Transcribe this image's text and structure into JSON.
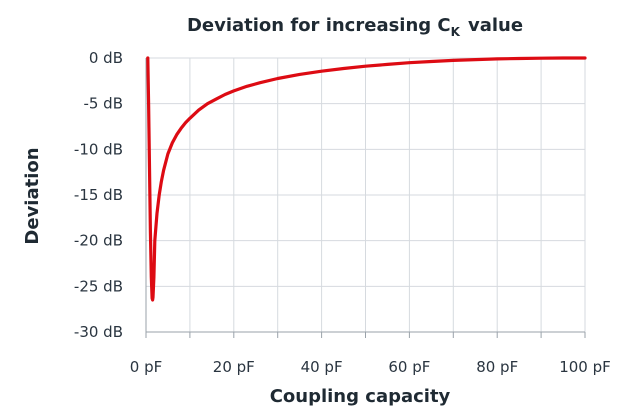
{
  "chart_data": {
    "type": "line",
    "title": {
      "main": "Deviation for increasing C",
      "subscript": "K",
      "suffix": "value"
    },
    "xlabel": "Coupling capacity",
    "ylabel": "Deviation",
    "xlim": [
      0,
      100
    ],
    "ylim": [
      -30,
      0
    ],
    "x_ticks": [
      0,
      10,
      20,
      30,
      40,
      50,
      60,
      70,
      80,
      90,
      100
    ],
    "x_tick_labels": [
      "0 pF",
      "",
      "20 pF",
      "",
      "40 pF",
      "",
      "60 pF",
      "",
      "80 pF",
      "",
      "100 pF"
    ],
    "y_ticks": [
      0,
      -5,
      -10,
      -15,
      -20,
      -25,
      -30
    ],
    "y_tick_labels": [
      "0 dB",
      "-5 dB",
      "-10 dB",
      "-15 dB",
      "-20 dB",
      "-25 dB",
      "-30 dB"
    ],
    "grid": true,
    "line_color": "#dd0b13",
    "series": [
      {
        "x": [
          0.4,
          0.6,
          0.8,
          1.0,
          1.2,
          1.4,
          1.5,
          1.6,
          1.8,
          2.0,
          2.5,
          3,
          3.5,
          4,
          5,
          6,
          7,
          8,
          9,
          10,
          12,
          14,
          16,
          18,
          20,
          23,
          26,
          30,
          35,
          40,
          45,
          50,
          55,
          60,
          65,
          70,
          75,
          80,
          85,
          90,
          95,
          100
        ],
        "y": [
          0,
          -5,
          -12,
          -19,
          -24,
          -26.3,
          -26.5,
          -26.2,
          -24,
          -20,
          -17,
          -15,
          -13.5,
          -12.3,
          -10.5,
          -9.3,
          -8.4,
          -7.7,
          -7.1,
          -6.6,
          -5.7,
          -5.0,
          -4.5,
          -4.0,
          -3.6,
          -3.1,
          -2.7,
          -2.25,
          -1.8,
          -1.45,
          -1.15,
          -0.9,
          -0.7,
          -0.52,
          -0.38,
          -0.26,
          -0.17,
          -0.1,
          -0.05,
          -0.02,
          -0.005,
          0
        ]
      }
    ]
  }
}
